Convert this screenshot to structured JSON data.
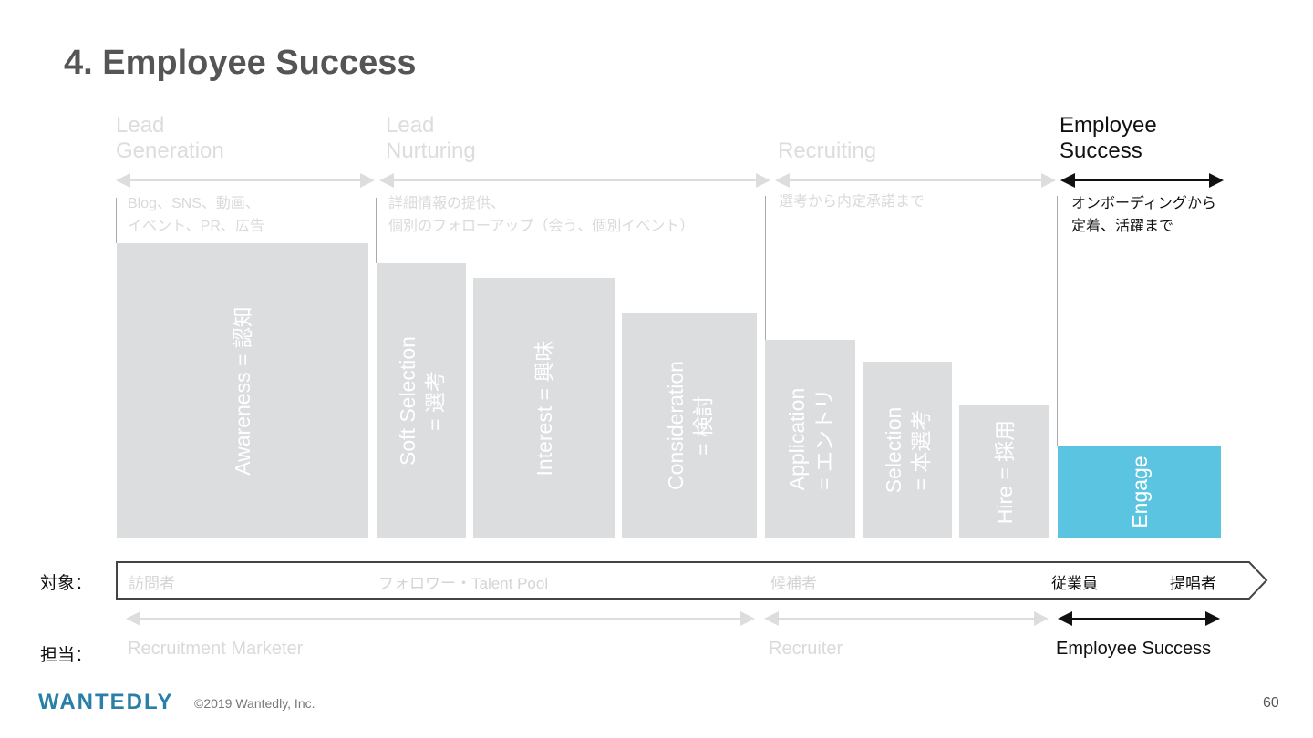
{
  "title": "4. Employee Success",
  "phases": [
    {
      "heading": "Lead\nGeneration",
      "desc": "Blog、SNS、動画、\nイベント、PR、広告",
      "active": false
    },
    {
      "heading": "Lead\nNurturing",
      "desc": "詳細情報の提供、\n個別のフォローアップ（会う、個別イベント）",
      "active": false
    },
    {
      "heading": "Recruiting",
      "desc": "選考から内定承諾まで",
      "active": false
    },
    {
      "heading": "Employee\nSuccess",
      "desc": "オンボーディングから\n定着、活躍まで",
      "active": true
    }
  ],
  "funnel_stages": [
    {
      "label": "Awareness = 認知"
    },
    {
      "label": "Soft Selection\n= 選考"
    },
    {
      "label": "Interest = 興味"
    },
    {
      "label": "Consideration\n= 検討"
    },
    {
      "label": "Application\n= エントリ"
    },
    {
      "label": "Selection\n= 本選考"
    },
    {
      "label": "Hire = 採用"
    },
    {
      "label": "Engage"
    }
  ],
  "target_row": {
    "label": "対象：",
    "items": [
      "訪問者",
      "フォロワー・Talent Pool",
      "候補者",
      "従業員",
      "提唱者"
    ]
  },
  "owner_row": {
    "label": "担当：",
    "items": [
      "Recruitment Marketer",
      "Recruiter",
      "Employee Success"
    ]
  },
  "footer": {
    "logo": "WANTEDLY",
    "copyright": "©2019 Wantedly, Inc.",
    "page_number": "60"
  },
  "colors": {
    "engage": "#5bc4e0",
    "bar": "#dcdddf",
    "inactive_text": "#dddddd",
    "title": "#555555"
  }
}
